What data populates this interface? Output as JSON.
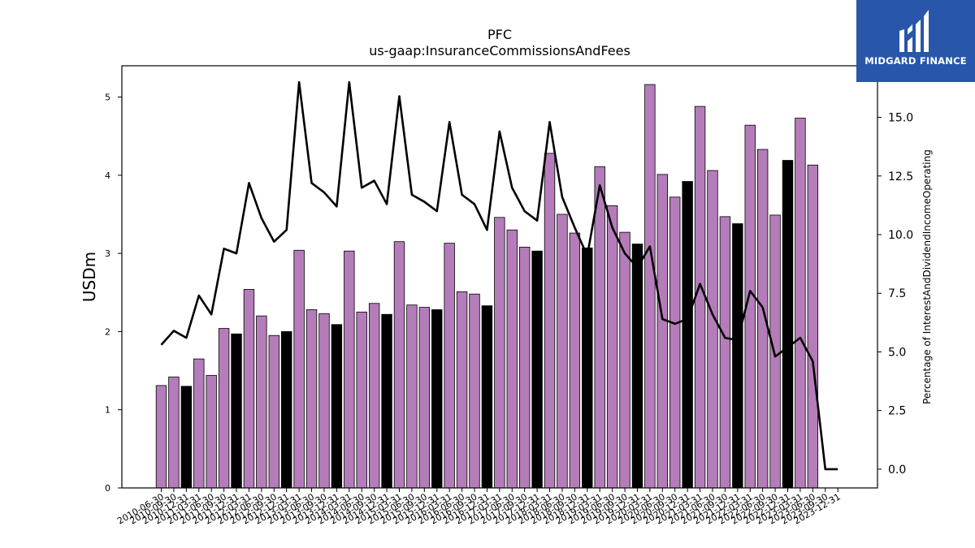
{
  "logo": {
    "text": "MIDGARD FINANCE",
    "background": "#2856a9"
  },
  "chart_data": {
    "type": "bar",
    "title": "PFC",
    "subtitle": "us-gaap:InsuranceCommissionsAndFees",
    "ylabel": "USDm",
    "y2label": "Percentage of InterestAndDividendIncomeOperating",
    "ylim": [
      0,
      5.4
    ],
    "y2lim": [
      -0.8,
      17.2
    ],
    "yticks": [
      "0",
      "1",
      "2",
      "3",
      "4",
      "5"
    ],
    "y2ticks": [
      "0.0",
      "2.5",
      "5.0",
      "7.5",
      "10.0",
      "12.5",
      "15.0"
    ],
    "bar_colors": {
      "default": "#b57cba",
      "year_end": "#000000"
    },
    "categories": [
      "2010-06-30",
      "2010-09-30",
      "2010-12-31",
      "2011-03-31",
      "2011-06-30",
      "2011-09-30",
      "2011-12-31",
      "2012-03-31",
      "2012-06-30",
      "2012-09-30",
      "2012-12-31",
      "2013-03-31",
      "2013-06-30",
      "2013-09-30",
      "2013-12-31",
      "2014-03-31",
      "2014-06-30",
      "2014-09-30",
      "2014-12-31",
      "2015-03-31",
      "2015-06-30",
      "2015-09-30",
      "2015-12-31",
      "2016-03-31",
      "2016-06-30",
      "2016-09-30",
      "2016-12-31",
      "2017-03-31",
      "2017-06-30",
      "2017-09-30",
      "2017-12-31",
      "2018-03-31",
      "2018-06-30",
      "2018-09-30",
      "2018-12-31",
      "2019-03-31",
      "2019-06-30",
      "2019-09-30",
      "2019-12-31",
      "2020-03-31",
      "2020-06-30",
      "2020-09-30",
      "2020-12-31",
      "2021-03-31",
      "2021-06-30",
      "2021-09-30",
      "2021-12-31",
      "2022-03-31",
      "2022-06-30",
      "2022-09-30",
      "2022-12-31",
      "2023-03-31",
      "2023-06-30",
      "2023-09-30",
      "2023-12-31"
    ],
    "series": [
      {
        "kind": "bar",
        "values": [
          1.31,
          1.42,
          1.3,
          1.65,
          1.44,
          2.04,
          1.97,
          2.54,
          2.2,
          1.95,
          2.0,
          3.04,
          2.28,
          2.23,
          2.09,
          3.03,
          2.25,
          2.36,
          2.22,
          3.15,
          2.34,
          2.31,
          2.28,
          3.13,
          2.51,
          2.48,
          2.33,
          3.46,
          3.3,
          3.08,
          3.03,
          4.28,
          3.5,
          3.26,
          3.07,
          4.11,
          3.61,
          3.27,
          3.12,
          5.16,
          4.01,
          3.72,
          3.92,
          4.88,
          4.06,
          3.47,
          3.38,
          4.64,
          4.33,
          3.49,
          4.19,
          4.73,
          4.13,
          null,
          null
        ]
      },
      {
        "kind": "line",
        "color": "#000000",
        "values": [
          5.3,
          5.9,
          5.6,
          7.4,
          6.6,
          9.4,
          9.2,
          12.2,
          10.7,
          9.7,
          10.2,
          16.5,
          12.2,
          11.8,
          11.2,
          16.5,
          12.0,
          12.3,
          11.3,
          15.9,
          11.7,
          11.4,
          11.0,
          14.8,
          11.7,
          11.3,
          10.2,
          14.4,
          12.0,
          11.0,
          10.6,
          14.8,
          11.6,
          10.3,
          9.1,
          12.1,
          10.3,
          9.2,
          8.6,
          9.5,
          6.4,
          6.2,
          6.4,
          7.9,
          6.6,
          5.6,
          5.5,
          7.6,
          6.9,
          4.8,
          5.2,
          5.6,
          4.6,
          0.0,
          0.0
        ]
      }
    ]
  }
}
